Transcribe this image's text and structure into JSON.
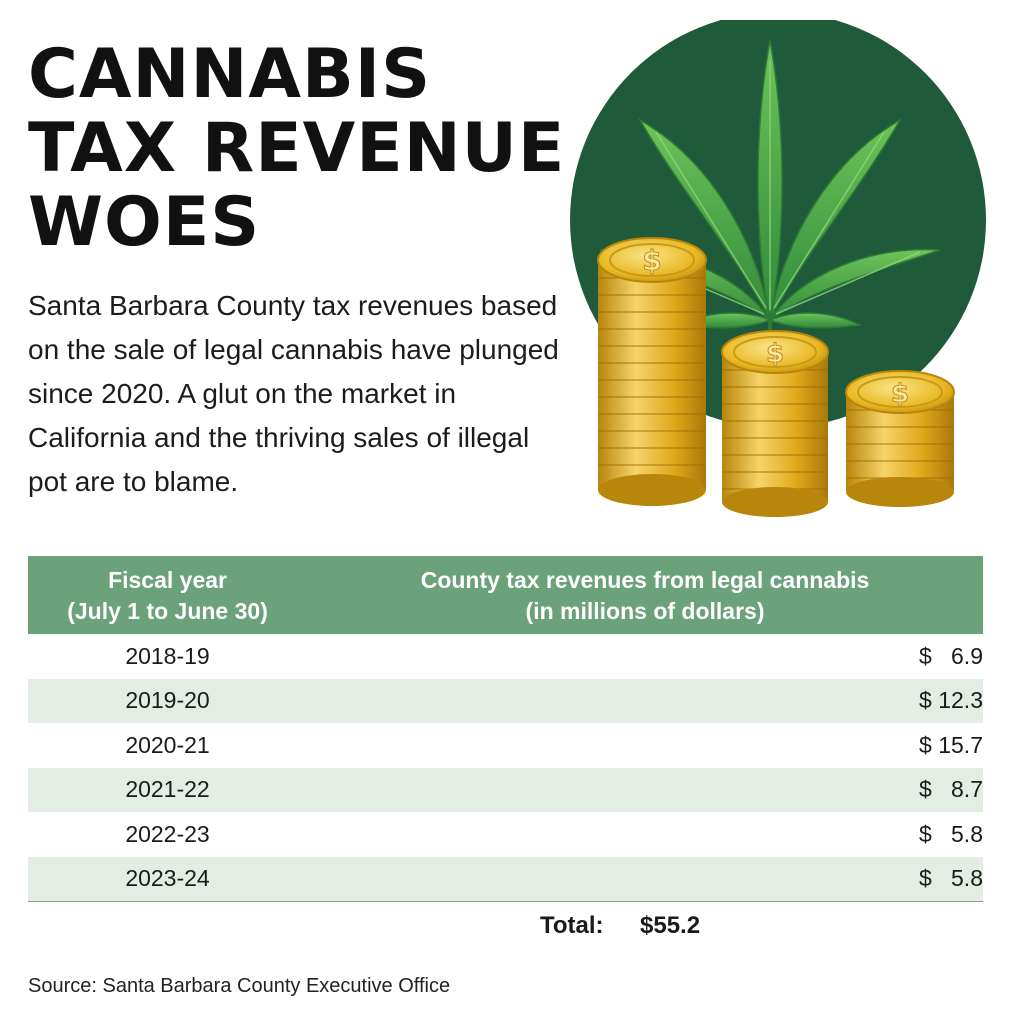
{
  "title_lines": [
    "CANNABIS",
    "TAX REVENUE",
    "WOES"
  ],
  "intro": "Santa Barbara County tax revenues based on the sale of legal cannabis have plunged since 2020. A glut on the market in California and the thriving sales of illegal pot are to blame.",
  "table": {
    "header_col1_line1": "Fiscal year",
    "header_col1_line2": "(July 1 to  June 30)",
    "header_col2_line1": "County tax revenues from legal cannabis",
    "header_col2_line2": "(in millions of dollars)",
    "rows": [
      {
        "year": "2018-19",
        "value": "$   6.9"
      },
      {
        "year": "2019-20",
        "value": "$ 12.3"
      },
      {
        "year": "2020-21",
        "value": "$ 15.7"
      },
      {
        "year": "2021-22",
        "value": "$   8.7"
      },
      {
        "year": "2022-23",
        "value": "$   5.8"
      },
      {
        "year": "2023-24",
        "value": "$   5.8"
      }
    ],
    "total_label": "Total:",
    "total_value": "$55.2"
  },
  "source": "Source: Santa Barbara County Executive Office",
  "colors": {
    "header_green": "#6ba279",
    "row_stripe": "#e3ede4",
    "circle_green": "#1f5b3a",
    "coin_gold": "#e8b923"
  },
  "chart_data": {
    "type": "table",
    "columns": [
      "Fiscal year (July 1 to  June 30)",
      "County tax revenues from legal cannabis (in millions of dollars)"
    ],
    "categories": [
      "2018-19",
      "2019-20",
      "2020-21",
      "2021-22",
      "2022-23",
      "2023-24"
    ],
    "values": [
      6.9,
      12.3,
      15.7,
      8.7,
      5.8,
      5.8
    ],
    "total": 55.2
  }
}
